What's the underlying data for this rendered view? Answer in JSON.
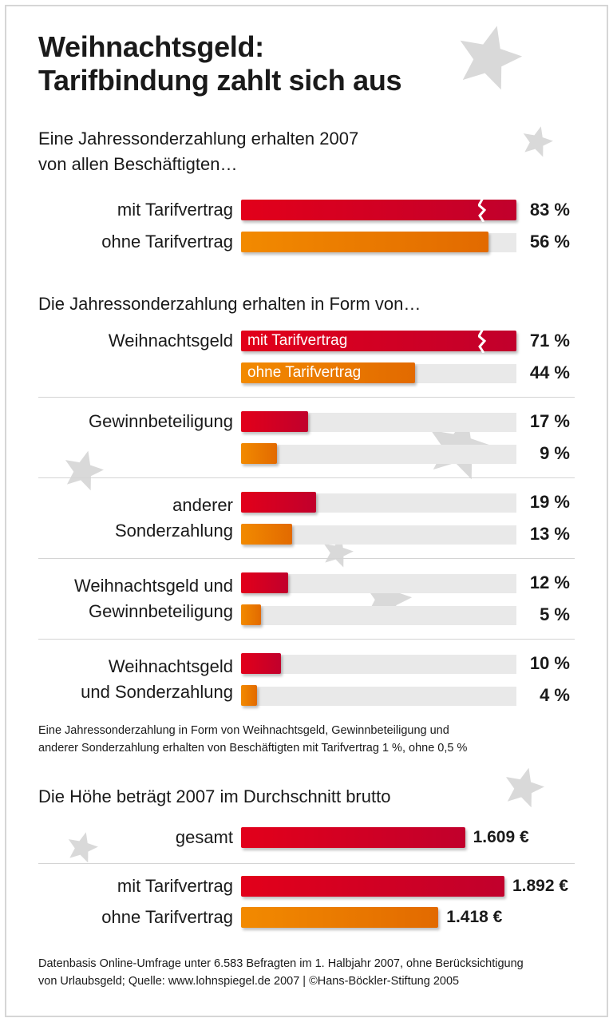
{
  "chart_data": [
    {
      "type": "bar",
      "title": "Weihnachtsgeld: Tarifbindung zahlt sich aus",
      "subtitle": "Eine Jahressonderzahlung erhalten 2007 von allen Beschäftigten…",
      "unit": "%",
      "categories": [
        "mit Tarifvertrag",
        "ohne Tarifvertrag"
      ],
      "values": [
        83,
        56
      ],
      "value_labels": [
        "83 %",
        "56 %"
      ],
      "axis_break": [
        true,
        false
      ]
    },
    {
      "type": "bar",
      "subtitle": "Die Jahressonderzahlung erhalten in Form von…",
      "unit": "%",
      "categories": [
        "Weihnachtsgeld",
        "Gewinnbeteiligung",
        "anderer Sonderzahlung",
        "Weihnachtsgeld und Gewinnbeteiligung",
        "Weihnachtsgeld und Sonderzahlung"
      ],
      "category_lines": [
        [
          "Weihnachtsgeld"
        ],
        [
          "Gewinnbeteiligung"
        ],
        [
          "anderer",
          "Sonderzahlung"
        ],
        [
          "Weihnachtsgeld und",
          "Gewinnbeteiligung"
        ],
        [
          "Weihnachtsgeld",
          "und Sonderzahlung"
        ]
      ],
      "series": [
        {
          "name": "mit Tarifvertrag",
          "color": "#d4001f",
          "values": [
            71,
            17,
            19,
            12,
            10
          ],
          "value_labels": [
            "71 %",
            "17 %",
            "19 %",
            "12 %",
            "10 %"
          ]
        },
        {
          "name": "ohne Tarifvertrag",
          "color": "#ee7d00",
          "values": [
            44,
            9,
            13,
            5,
            4
          ],
          "value_labels": [
            "44 %",
            "9 %",
            "13 %",
            "5 %",
            "4 %"
          ]
        }
      ],
      "axis_break": [
        true,
        false
      ],
      "note": [
        "Eine Jahressonderzahlung in Form von Weihnachtsgeld, Gewinnbeteiligung und",
        "anderer Sonderzahlung erhalten von Beschäftigten mit Tarifvertrag 1 %, ohne 0,5 %"
      ]
    },
    {
      "type": "bar",
      "subtitle": "Die Höhe beträgt 2007 im Durchschnitt brutto",
      "unit": "€",
      "categories": [
        "gesamt",
        "mit Tarifvertrag",
        "ohne Tarifvertrag"
      ],
      "values": [
        1609,
        1892,
        1418
      ],
      "value_labels": [
        "1.609 €",
        "1.892 €",
        "1.418 €"
      ],
      "colors": [
        "#d4001f",
        "#d4001f",
        "#ee7d00"
      ]
    }
  ],
  "title_lines": [
    "Weihnachtsgeld:",
    "Tarifbindung zahlt sich aus"
  ],
  "subtitle1_lines": [
    "Eine Jahressonderzahlung erhalten 2007",
    "von allen Beschäftigten…"
  ],
  "source_lines": [
    "Datenbasis Online-Umfrage unter 6.583 Befragten im 1. Halbjahr 2007, ohne Berücksichtigung",
    "von Urlaubsgeld; Quelle: www.lohnspiegel.de 2007 | ©Hans-Böckler-Stiftung 2005"
  ],
  "colors": {
    "red": "#d4001f",
    "orange": "#ee7d00",
    "track": "#e9e9e9",
    "star": "#d9d9d9"
  }
}
